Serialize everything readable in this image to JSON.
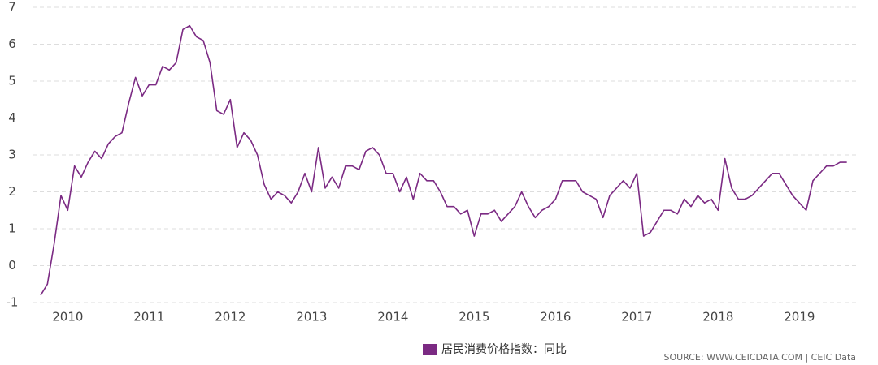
{
  "chart_data": {
    "type": "line",
    "categories": [
      null,
      null,
      null,
      null,
      "2010",
      null,
      null,
      null,
      null,
      null,
      null,
      null,
      null,
      null,
      null,
      null,
      "2011",
      null,
      null,
      null,
      null,
      null,
      null,
      null,
      null,
      null,
      null,
      null,
      "2012",
      null,
      null,
      null,
      null,
      null,
      null,
      null,
      null,
      null,
      null,
      null,
      "2013",
      null,
      null,
      null,
      null,
      null,
      null,
      null,
      null,
      null,
      null,
      null,
      "2014",
      null,
      null,
      null,
      null,
      null,
      null,
      null,
      null,
      null,
      null,
      null,
      "2015",
      null,
      null,
      null,
      null,
      null,
      null,
      null,
      null,
      null,
      null,
      null,
      "2016",
      null,
      null,
      null,
      null,
      null,
      null,
      null,
      null,
      null,
      null,
      null,
      "2017",
      null,
      null,
      null,
      null,
      null,
      null,
      null,
      null,
      null,
      null,
      null,
      "2018",
      null,
      null,
      null,
      null,
      null,
      null,
      null,
      null,
      null,
      null,
      null,
      "2019",
      null,
      null,
      null,
      null,
      null,
      null,
      null
    ],
    "series": [
      {
        "name": "居民消费价格指数：同比",
        "color": "#7b2a83",
        "values": [
          -0.8,
          -0.5,
          0.6,
          1.9,
          1.5,
          2.7,
          2.4,
          2.8,
          3.1,
          2.9,
          3.3,
          3.5,
          3.6,
          4.4,
          5.1,
          4.6,
          4.9,
          4.9,
          5.4,
          5.3,
          5.5,
          6.4,
          6.5,
          6.2,
          6.1,
          5.5,
          4.2,
          4.1,
          4.5,
          3.2,
          3.6,
          3.4,
          3.0,
          2.2,
          1.8,
          2.0,
          1.9,
          1.7,
          2.0,
          2.5,
          2.0,
          3.2,
          2.1,
          2.4,
          2.1,
          2.7,
          2.7,
          2.6,
          3.1,
          3.2,
          3.0,
          2.5,
          2.5,
          2.0,
          2.4,
          1.8,
          2.5,
          2.3,
          2.3,
          2.0,
          1.6,
          1.6,
          1.4,
          1.5,
          0.8,
          1.4,
          1.4,
          1.5,
          1.2,
          1.4,
          1.6,
          2.0,
          1.6,
          1.3,
          1.5,
          1.6,
          1.8,
          2.3,
          2.3,
          2.3,
          2.0,
          1.9,
          1.8,
          1.3,
          1.9,
          2.1,
          2.3,
          2.1,
          2.5,
          0.8,
          0.9,
          1.2,
          1.5,
          1.5,
          1.4,
          1.8,
          1.6,
          1.9,
          1.7,
          1.8,
          1.5,
          2.9,
          2.1,
          1.8,
          1.8,
          1.9,
          2.1,
          2.3,
          2.5,
          2.5,
          2.2,
          1.9,
          1.7,
          1.5,
          2.3,
          2.5,
          2.7,
          2.7,
          2.8,
          2.8
        ]
      }
    ],
    "ylim": [
      -1,
      7
    ],
    "yticks": [
      -1,
      0,
      1,
      2,
      3,
      4,
      5,
      6,
      7
    ],
    "grid": true,
    "source": "SOURCE: WWW.CEICDATA.COM | CEIC Data"
  }
}
